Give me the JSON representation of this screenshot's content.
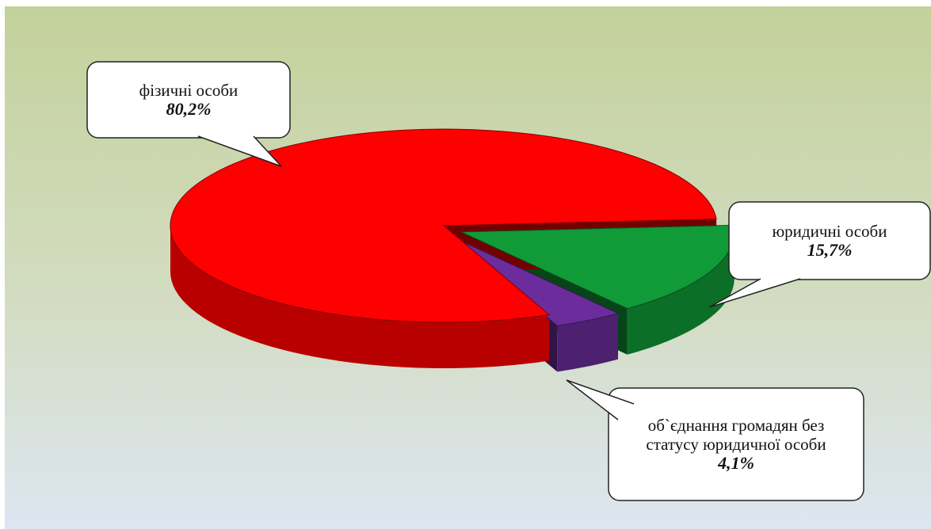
{
  "chart_data": {
    "type": "pie3d",
    "categories": [
      "фізичні особи",
      "юридичні особи",
      "об`єднання громадян без статусу юридичної особи"
    ],
    "values": [
      80.2,
      15.7,
      4.1
    ],
    "value_labels": [
      "80,2%",
      "15,7%",
      "4,1%"
    ],
    "colors": [
      "#ff0000",
      "#109a38",
      "#6b2c9c"
    ]
  }
}
